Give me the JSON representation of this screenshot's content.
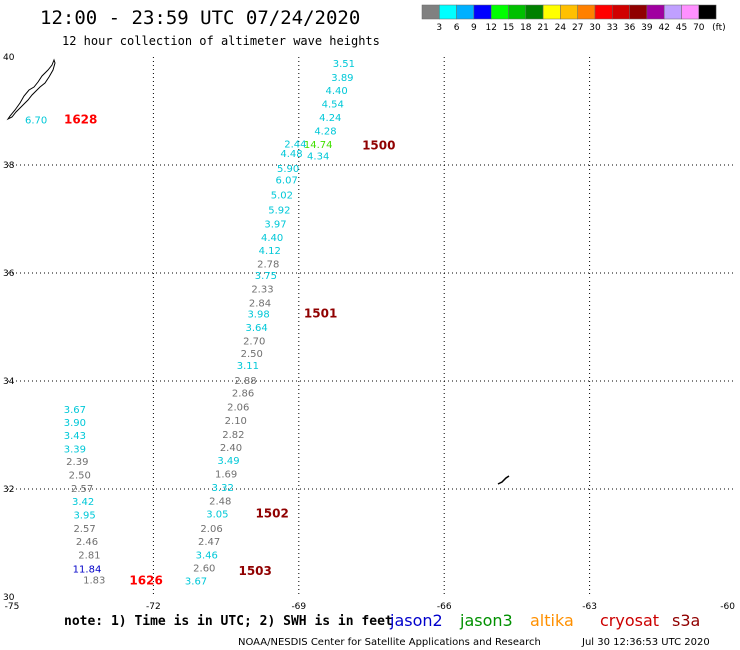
{
  "chart_data": {
    "type": "scatter",
    "title": "12:00 - 23:59 UTC 07/24/2020",
    "subtitle": "12 hour collection of altimeter wave heights",
    "xlim": [
      -75,
      -60
    ],
    "ylim": [
      30,
      40
    ],
    "x_ticks": [
      "-75",
      "-72",
      "-69",
      "-66",
      "-63",
      "-60"
    ],
    "y_ticks": [
      "30",
      "32",
      "34",
      "36",
      "38",
      "40"
    ],
    "grid": true,
    "color_scale": {
      "unit_label": "(ft)",
      "labels": [
        "3",
        "6",
        "9",
        "12",
        "15",
        "18",
        "21",
        "24",
        "27",
        "30",
        "33",
        "36",
        "39",
        "42",
        "45",
        "70"
      ],
      "colors": [
        "#808080",
        "#00ffff",
        "#00b0ff",
        "#0000ff",
        "#00ff00",
        "#00c000",
        "#008000",
        "#ffff00",
        "#ffc000",
        "#ff8000",
        "#ff0000",
        "#d00000",
        "#900000",
        "#a000a0",
        "#c0a0ff",
        "#ff90ff",
        "#000000"
      ]
    },
    "observations": [
      {
        "lon": -69.07,
        "lat": 38.4,
        "label": "2.44",
        "color": "#00c8d8"
      },
      {
        "lon": -69.15,
        "lat": 38.22,
        "label": "4.48",
        "color": "#00c8d8"
      },
      {
        "lon": -69.22,
        "lat": 37.94,
        "label": "5.90",
        "color": "#00c8d8"
      },
      {
        "lon": -69.25,
        "lat": 37.73,
        "label": "6.07",
        "color": "#00c8d8"
      },
      {
        "lon": -69.35,
        "lat": 37.45,
        "label": "5.02",
        "color": "#00c8d8"
      },
      {
        "lon": -69.4,
        "lat": 37.18,
        "label": "5.92",
        "color": "#00c8d8"
      },
      {
        "lon": -69.48,
        "lat": 36.92,
        "label": "3.97",
        "color": "#00c8d8"
      },
      {
        "lon": -69.55,
        "lat": 36.67,
        "label": "4.40",
        "color": "#00c8d8"
      },
      {
        "lon": -69.6,
        "lat": 36.43,
        "label": "4.12",
        "color": "#00c8d8"
      },
      {
        "lon": -69.63,
        "lat": 36.18,
        "label": "2.78",
        "color": "#707070"
      },
      {
        "lon": -69.68,
        "lat": 35.96,
        "label": "3.75",
        "color": "#00c8d8"
      },
      {
        "lon": -69.75,
        "lat": 35.71,
        "label": "2.33",
        "color": "#707070"
      },
      {
        "lon": -69.8,
        "lat": 35.45,
        "label": "2.84",
        "color": "#707070"
      },
      {
        "lon": -69.83,
        "lat": 35.25,
        "label": "3.98",
        "color": "#00c8d8"
      },
      {
        "lon": -69.87,
        "lat": 35.0,
        "label": "3.64",
        "color": "#00c8d8"
      },
      {
        "lon": -69.92,
        "lat": 34.75,
        "label": "2.70",
        "color": "#707070"
      },
      {
        "lon": -69.97,
        "lat": 34.52,
        "label": "2.50",
        "color": "#707070"
      },
      {
        "lon": -70.05,
        "lat": 34.3,
        "label": "3.11",
        "color": "#00c8d8"
      },
      {
        "lon": -70.1,
        "lat": 34.02,
        "label": "2.88",
        "color": "#707070"
      },
      {
        "lon": -70.15,
        "lat": 33.79,
        "label": "2.86",
        "color": "#707070"
      },
      {
        "lon": -70.25,
        "lat": 33.53,
        "label": "2.06",
        "color": "#707070"
      },
      {
        "lon": -70.3,
        "lat": 33.28,
        "label": "2.10",
        "color": "#707070"
      },
      {
        "lon": -70.35,
        "lat": 33.02,
        "label": "2.82",
        "color": "#707070"
      },
      {
        "lon": -70.4,
        "lat": 32.78,
        "label": "2.40",
        "color": "#707070"
      },
      {
        "lon": -70.45,
        "lat": 32.54,
        "label": "3.49",
        "color": "#00c8d8"
      },
      {
        "lon": -70.5,
        "lat": 32.29,
        "label": "1.69",
        "color": "#707070"
      },
      {
        "lon": -70.57,
        "lat": 32.04,
        "label": "3.32",
        "color": "#00c8d8"
      },
      {
        "lon": -70.62,
        "lat": 31.79,
        "label": "2.48",
        "color": "#707070"
      },
      {
        "lon": -70.68,
        "lat": 31.55,
        "label": "3.05",
        "color": "#00c8d8"
      },
      {
        "lon": -70.8,
        "lat": 31.28,
        "label": "2.06",
        "color": "#707070"
      },
      {
        "lon": -70.85,
        "lat": 31.04,
        "label": "2.47",
        "color": "#707070"
      },
      {
        "lon": -70.9,
        "lat": 30.79,
        "label": "3.46",
        "color": "#00c8d8"
      },
      {
        "lon": -70.95,
        "lat": 30.55,
        "label": "2.60",
        "color": "#707070"
      },
      {
        "lon": -71.12,
        "lat": 30.31,
        "label": "3.67",
        "color": "#00c8d8"
      },
      {
        "lon": -68.07,
        "lat": 39.89,
        "label": "3.51",
        "color": "#00c8d8"
      },
      {
        "lon": -68.1,
        "lat": 39.63,
        "label": "3.89",
        "color": "#00c8d8"
      },
      {
        "lon": -68.22,
        "lat": 39.39,
        "label": "4.40",
        "color": "#00c8d8"
      },
      {
        "lon": -68.3,
        "lat": 39.14,
        "label": "4.54",
        "color": "#00c8d8"
      },
      {
        "lon": -68.35,
        "lat": 38.89,
        "label": "4.24",
        "color": "#00c8d8"
      },
      {
        "lon": -68.45,
        "lat": 38.64,
        "label": "4.28",
        "color": "#00c8d8"
      },
      {
        "lon": -68.6,
        "lat": 38.39,
        "label": "14.74",
        "color": "#40e000"
      },
      {
        "lon": -68.6,
        "lat": 38.18,
        "label": "4.34",
        "color": "#00c8d8"
      },
      {
        "lon": -73.62,
        "lat": 33.48,
        "label": "3.67",
        "color": "#00c8d8"
      },
      {
        "lon": -73.62,
        "lat": 33.24,
        "label": "3.90",
        "color": "#00c8d8"
      },
      {
        "lon": -73.62,
        "lat": 33.0,
        "label": "3.43",
        "color": "#00c8d8"
      },
      {
        "lon": -73.62,
        "lat": 32.75,
        "label": "3.39",
        "color": "#00c8d8"
      },
      {
        "lon": -73.57,
        "lat": 32.52,
        "label": "2.39",
        "color": "#707070"
      },
      {
        "lon": -73.52,
        "lat": 32.27,
        "label": "2.50",
        "color": "#707070"
      },
      {
        "lon": -73.47,
        "lat": 32.02,
        "label": "2.57",
        "color": "#707070"
      },
      {
        "lon": -73.45,
        "lat": 31.78,
        "label": "3.42",
        "color": "#00c8d8"
      },
      {
        "lon": -73.42,
        "lat": 31.53,
        "label": "3.95",
        "color": "#00c8d8"
      },
      {
        "lon": -73.42,
        "lat": 31.28,
        "label": "2.57",
        "color": "#707070"
      },
      {
        "lon": -73.37,
        "lat": 31.04,
        "label": "2.46",
        "color": "#707070"
      },
      {
        "lon": -73.32,
        "lat": 30.79,
        "label": "2.81",
        "color": "#707070"
      },
      {
        "lon": -73.37,
        "lat": 30.53,
        "label": "11.84",
        "color": "#0000c8"
      },
      {
        "lon": -73.22,
        "lat": 30.32,
        "label": "1.83",
        "color": "#707070"
      },
      {
        "lon": -74.42,
        "lat": 38.84,
        "label": "6.70",
        "color": "#00c8d8"
      }
    ],
    "pass_labels": [
      {
        "lon": -73.5,
        "lat": 38.84,
        "label": "1628",
        "color": "#ff0000"
      },
      {
        "lon": -72.15,
        "lat": 30.31,
        "label": "1626",
        "color": "#ff0000"
      },
      {
        "lon": -67.35,
        "lat": 38.36,
        "label": "1500",
        "color": "#900000"
      },
      {
        "lon": -68.55,
        "lat": 35.25,
        "label": "1501",
        "color": "#900000"
      },
      {
        "lon": -69.55,
        "lat": 31.55,
        "label": "1502",
        "color": "#900000"
      },
      {
        "lon": -69.9,
        "lat": 30.48,
        "label": "1503",
        "color": "#900000"
      }
    ],
    "legend": [
      {
        "name": "jason2",
        "color": "#0000cc"
      },
      {
        "name": "jason3",
        "color": "#009000"
      },
      {
        "name": "altika",
        "color": "#ff9000"
      },
      {
        "name": "cryosat",
        "color": "#cc0000"
      },
      {
        "name": "s3a",
        "color": "#900000"
      }
    ]
  },
  "note": "note: 1) Time is in UTC; 2) SWH is in feet",
  "credit": "NOAA/NESDIS Center for Satellite Applications and Research",
  "timestamp": "Jul 30 12:36:53 UTC 2020"
}
